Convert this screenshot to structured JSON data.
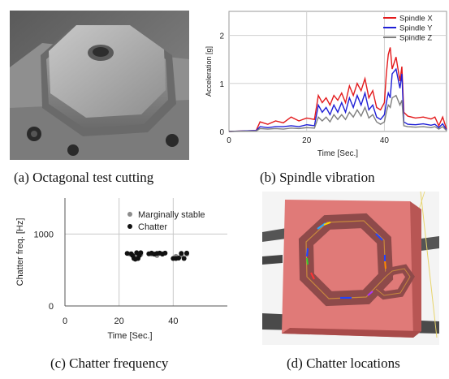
{
  "captions": {
    "a": "(a) Octagonal test cutting",
    "b": "(b) Spindle vibration",
    "c": "(c) Chatter frequency",
    "d": "(d) Chatter locations"
  },
  "colors": {
    "spindle_x": "#e31a1c",
    "spindle_y": "#1f1fd6",
    "spindle_z": "#7f7f7f",
    "marginal": "#8c8c8c",
    "chatter": "#111111",
    "workpiece": "#e07a78",
    "photo_metal": "#9a9a9a"
  },
  "chart_data": [
    {
      "id": "spindle-vibration",
      "type": "line",
      "xlabel": "Time [Sec.]",
      "ylabel": "Acceleration [g]",
      "xlim": [
        0,
        56
      ],
      "ylim": [
        0,
        2.5
      ],
      "xticks": [
        0,
        20,
        40
      ],
      "yticks": [
        0,
        1,
        2
      ],
      "grid": true,
      "legend_position": "top-right",
      "series": [
        {
          "name": "Spindle X",
          "x": [
            0,
            7,
            8,
            10,
            12,
            14,
            16,
            18,
            20,
            22,
            23,
            24,
            25,
            26,
            27,
            28,
            29,
            30,
            31,
            32,
            33,
            34,
            35,
            36,
            37,
            38,
            39,
            40,
            40.5,
            41,
            41.5,
            42,
            43,
            44,
            44.5,
            45,
            46,
            48,
            50,
            52,
            53,
            54,
            55,
            56
          ],
          "y": [
            0,
            0.02,
            0.2,
            0.15,
            0.22,
            0.18,
            0.3,
            0.22,
            0.28,
            0.25,
            0.75,
            0.6,
            0.7,
            0.55,
            0.75,
            0.65,
            0.8,
            0.6,
            0.95,
            0.75,
            1.0,
            0.85,
            1.1,
            0.7,
            0.85,
            0.5,
            0.45,
            0.6,
            1.2,
            1.6,
            1.75,
            1.3,
            1.55,
            1.05,
            1.35,
            0.4,
            0.32,
            0.28,
            0.3,
            0.26,
            0.3,
            0.12,
            0.3,
            0.05
          ]
        },
        {
          "name": "Spindle Y",
          "x": [
            0,
            7,
            8,
            10,
            12,
            14,
            16,
            18,
            20,
            22,
            23,
            24,
            25,
            26,
            27,
            28,
            29,
            30,
            31,
            32,
            33,
            34,
            35,
            36,
            37,
            38,
            39,
            40,
            40.5,
            41,
            41.5,
            42,
            43,
            44,
            44.5,
            45,
            46,
            48,
            50,
            52,
            53,
            54,
            55,
            56
          ],
          "y": [
            0,
            0.02,
            0.1,
            0.08,
            0.1,
            0.1,
            0.12,
            0.1,
            0.14,
            0.12,
            0.55,
            0.4,
            0.5,
            0.35,
            0.55,
            0.4,
            0.6,
            0.4,
            0.7,
            0.5,
            0.75,
            0.55,
            0.8,
            0.45,
            0.55,
            0.3,
            0.25,
            0.35,
            0.6,
            0.8,
            0.7,
            1.2,
            1.3,
            0.9,
            1.2,
            0.2,
            0.15,
            0.14,
            0.16,
            0.13,
            0.15,
            0.08,
            0.16,
            0.03
          ]
        },
        {
          "name": "Spindle Z",
          "x": [
            0,
            7,
            8,
            10,
            12,
            14,
            16,
            18,
            20,
            22,
            23,
            24,
            25,
            26,
            27,
            28,
            29,
            30,
            31,
            32,
            33,
            34,
            35,
            36,
            37,
            38,
            39,
            40,
            40.5,
            41,
            41.5,
            42,
            43,
            44,
            44.5,
            45,
            46,
            48,
            50,
            52,
            53,
            54,
            55,
            56
          ],
          "y": [
            0,
            0.01,
            0.06,
            0.05,
            0.06,
            0.05,
            0.07,
            0.06,
            0.08,
            0.07,
            0.3,
            0.22,
            0.3,
            0.2,
            0.35,
            0.25,
            0.35,
            0.25,
            0.4,
            0.3,
            0.45,
            0.32,
            0.5,
            0.28,
            0.35,
            0.2,
            0.15,
            0.2,
            0.4,
            0.55,
            0.5,
            0.7,
            0.75,
            0.55,
            0.65,
            0.12,
            0.1,
            0.09,
            0.1,
            0.08,
            0.1,
            0.05,
            0.1,
            0.02
          ]
        }
      ]
    },
    {
      "id": "chatter-frequency",
      "type": "scatter",
      "xlabel": "Time [Sec.]",
      "ylabel": "Chatter freq. [Hz]",
      "xlim": [
        0,
        60
      ],
      "ylim": [
        0,
        1500
      ],
      "xticks": [
        0,
        20,
        40
      ],
      "yticks": [
        0,
        1000
      ],
      "grid": true,
      "legend_position": "top-right",
      "series": [
        {
          "name": "Marginally stable",
          "points": [
            [
              24,
              720
            ],
            [
              26,
              690
            ],
            [
              28,
              715
            ],
            [
              32,
              720
            ],
            [
              34,
              700
            ],
            [
              36,
              725
            ],
            [
              41,
              690
            ],
            [
              43,
              700
            ],
            [
              45,
              720
            ]
          ]
        },
        {
          "name": "Chatter",
          "points": [
            [
              23,
              730
            ],
            [
              24.5,
              725
            ],
            [
              25,
              700
            ],
            [
              25.5,
              660
            ],
            [
              26,
              650
            ],
            [
              26.5,
              740
            ],
            [
              27,
              660
            ],
            [
              27.5,
              700
            ],
            [
              28,
              740
            ],
            [
              31,
              725
            ],
            [
              32,
              735
            ],
            [
              33,
              720
            ],
            [
              34,
              730
            ],
            [
              35,
              735
            ],
            [
              36,
              720
            ],
            [
              37,
              735
            ],
            [
              40,
              660
            ],
            [
              41,
              660
            ],
            [
              42,
              665
            ],
            [
              43,
              730
            ],
            [
              44,
              660
            ],
            [
              45,
              735
            ]
          ]
        }
      ]
    }
  ]
}
